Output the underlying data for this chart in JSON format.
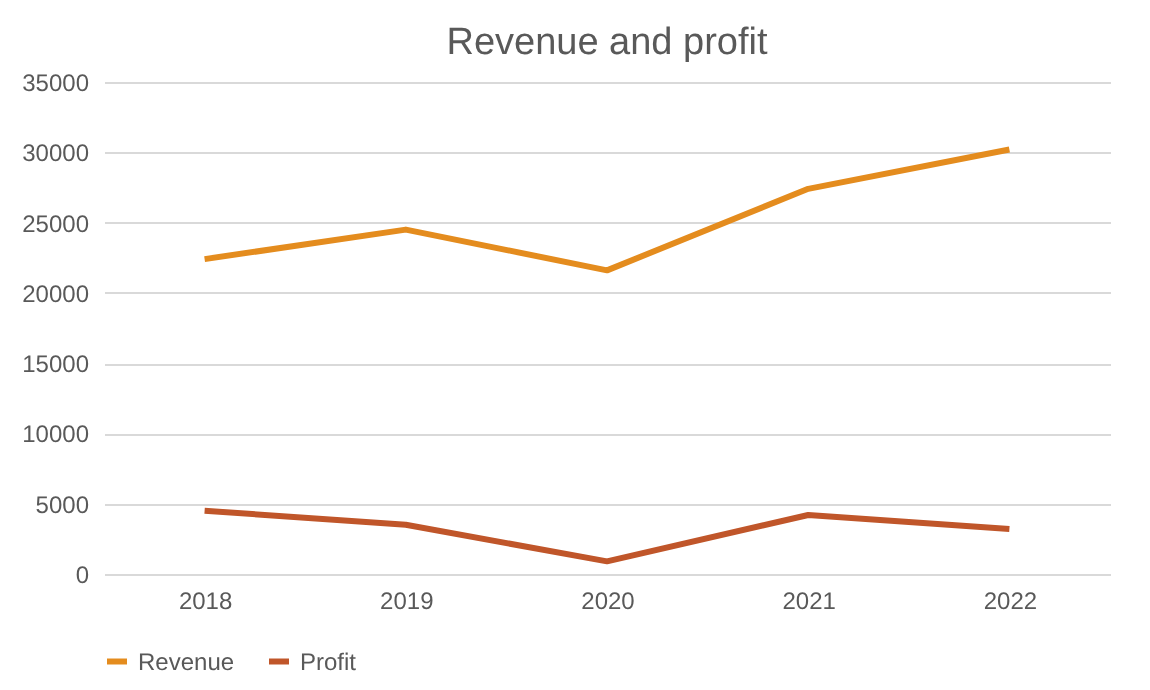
{
  "chart_data": {
    "type": "line",
    "title": "Revenue and profit",
    "categories": [
      "2018",
      "2019",
      "2020",
      "2021",
      "2022"
    ],
    "series": [
      {
        "name": "Revenue",
        "color": "#e48c1e",
        "values": [
          22400,
          24500,
          21600,
          27400,
          30200
        ]
      },
      {
        "name": "Profit",
        "color": "#c0562a",
        "values": [
          4500,
          3500,
          900,
          4200,
          3200
        ]
      }
    ],
    "ylim": [
      0,
      35000
    ],
    "yticks": [
      0,
      5000,
      10000,
      15000,
      20000,
      25000,
      30000,
      35000
    ],
    "grid": "y",
    "legend": "bottom",
    "marker": "none",
    "line_style": "solid"
  }
}
